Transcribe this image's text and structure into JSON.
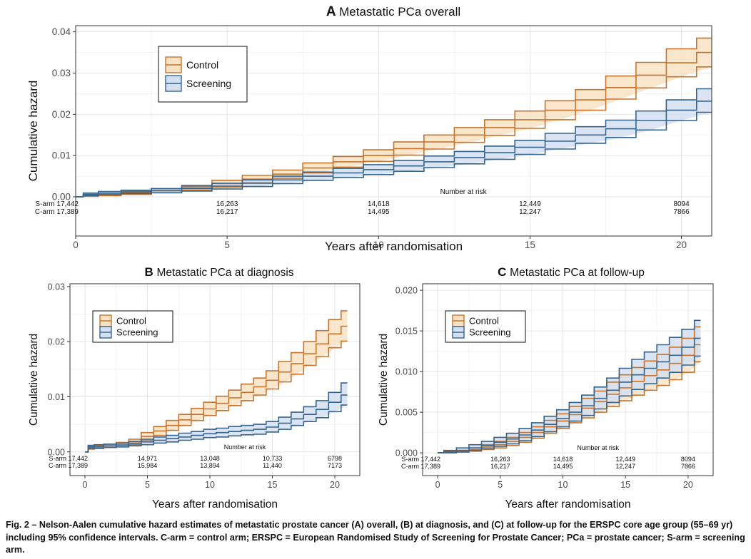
{
  "colors": {
    "control": "#c8742f",
    "control_fill": "#f7e2c4",
    "screening": "#35648c",
    "screening_fill": "#d4dff1",
    "grid": "#e6e6e6",
    "panel_border": "#333333"
  },
  "caption": {
    "prefix": "Fig. 2 – ",
    "text": "Nelson-Aalen cumulative hazard estimates of metastatic prostate cancer (A) overall, (B) at diagnosis, and (C) at follow-up for the ERSPC core age group (55–69 yr) including 95% confidence intervals. C-arm = control arm; ERSPC = European Randomised Study of Screening for Prostate Cancer; PCa = prostate cancer; S-arm = screening arm."
  },
  "chart_data": [
    {
      "id": "A",
      "type": "line",
      "panel_letter": "A",
      "title": "Metastatic PCa overall",
      "xlabel": "Years after randomisation",
      "ylabel": "Cumulative hazard",
      "xlim": [
        0,
        21
      ],
      "ylim": [
        -0.0095,
        0.0415
      ],
      "xticks": [
        0,
        5,
        10,
        15,
        20
      ],
      "xtick_labels": [
        "0",
        "5",
        "10",
        "15",
        "20"
      ],
      "yticks": [
        0,
        0.01,
        0.02,
        0.03,
        0.04
      ],
      "ytick_labels": [
        "0.00",
        "0.01",
        "0.02",
        "0.03",
        "0.04"
      ],
      "grid": true,
      "legend": {
        "position": "top-left",
        "entries": [
          "Control",
          "Screening"
        ]
      },
      "risk_table": {
        "title": "Number at risk",
        "rows": [
          {
            "label": "S-arm",
            "values": [
              "17,442",
              "16,263",
              "14,618",
              "12,449",
              "8094"
            ]
          },
          {
            "label": "C-arm",
            "values": [
              "17,389",
              "16,217",
              "14,495",
              "12,247",
              "7866"
            ]
          }
        ],
        "times": [
          0,
          5,
          10,
          15,
          20
        ]
      },
      "series": [
        {
          "name": "Control",
          "x": [
            0,
            0.5,
            1,
            2,
            3,
            4,
            5,
            6,
            7,
            8,
            9,
            10,
            11,
            12,
            13,
            14,
            15,
            16,
            17,
            18,
            19,
            20,
            21
          ],
          "y": [
            0,
            0.0003,
            0.0006,
            0.001,
            0.0015,
            0.0022,
            0.0032,
            0.0043,
            0.0055,
            0.007,
            0.0085,
            0.01,
            0.0117,
            0.0133,
            0.015,
            0.0168,
            0.0187,
            0.021,
            0.0235,
            0.0265,
            0.0295,
            0.0325,
            0.035
          ],
          "lower": [
            0,
            0.0001,
            0.0003,
            0.0006,
            0.001,
            0.0016,
            0.0024,
            0.0034,
            0.0045,
            0.0058,
            0.0072,
            0.0086,
            0.0101,
            0.0116,
            0.0132,
            0.0149,
            0.0166,
            0.0187,
            0.021,
            0.0237,
            0.0264,
            0.0291,
            0.0315
          ],
          "upper": [
            0,
            0.0005,
            0.0009,
            0.0014,
            0.002,
            0.0028,
            0.004,
            0.0052,
            0.0065,
            0.0082,
            0.0098,
            0.0114,
            0.0133,
            0.015,
            0.0168,
            0.0187,
            0.0208,
            0.0233,
            0.026,
            0.0293,
            0.0326,
            0.0359,
            0.0385
          ]
        },
        {
          "name": "Screening",
          "x": [
            0,
            0.5,
            1,
            2,
            3,
            4,
            5,
            6,
            7,
            8,
            9,
            10,
            11,
            12,
            13,
            14,
            15,
            16,
            17,
            18,
            19,
            20,
            21
          ],
          "y": [
            0,
            0.0006,
            0.0009,
            0.0012,
            0.0015,
            0.002,
            0.0026,
            0.0033,
            0.0041,
            0.005,
            0.0058,
            0.0066,
            0.0075,
            0.0085,
            0.0095,
            0.0107,
            0.012,
            0.0135,
            0.015,
            0.0165,
            0.0185,
            0.021,
            0.0232
          ],
          "lower": [
            0,
            0.0003,
            0.0005,
            0.0008,
            0.001,
            0.0014,
            0.0019,
            0.0025,
            0.0032,
            0.004,
            0.0047,
            0.0054,
            0.0062,
            0.0071,
            0.008,
            0.0091,
            0.0103,
            0.0116,
            0.013,
            0.0144,
            0.0162,
            0.0185,
            0.0205
          ],
          "upper": [
            0,
            0.0009,
            0.0013,
            0.0016,
            0.002,
            0.0026,
            0.0033,
            0.0041,
            0.005,
            0.006,
            0.0069,
            0.0078,
            0.0088,
            0.0099,
            0.011,
            0.0123,
            0.0137,
            0.0154,
            0.017,
            0.0186,
            0.0208,
            0.0235,
            0.0262
          ]
        }
      ]
    },
    {
      "id": "B",
      "type": "line",
      "panel_letter": "B",
      "title": "Metastatic PCa at diagnosis",
      "xlabel": "Years after randomisation",
      "ylabel": "Cumulative hazard",
      "xlim": [
        -1.2,
        22
      ],
      "ylim": [
        -0.0043,
        0.0305
      ],
      "xticks": [
        0,
        5,
        10,
        15,
        20
      ],
      "xtick_labels": [
        "0",
        "5",
        "10",
        "15",
        "20"
      ],
      "yticks": [
        0,
        0.01,
        0.02,
        0.03
      ],
      "ytick_labels": [
        "0.00",
        "0.01",
        "0.02",
        "0.03"
      ],
      "grid": true,
      "legend": {
        "position": "top-left",
        "entries": [
          "Control",
          "Screening"
        ]
      },
      "risk_table": {
        "title": "Number at risk",
        "rows": [
          {
            "label": "S-arm",
            "values": [
              "17,442",
              "14,971",
              "13,048",
              "10,733",
              "6798"
            ]
          },
          {
            "label": "C-arm",
            "values": [
              "17,389",
              "15,984",
              "13,894",
              "11,440",
              "7173"
            ]
          }
        ],
        "times": [
          0,
          5,
          10,
          15,
          20
        ]
      },
      "series": [
        {
          "name": "Control",
          "x": [
            0,
            0.5,
            1,
            2,
            3,
            4,
            5,
            6,
            7,
            8,
            9,
            10,
            11,
            12,
            13,
            14,
            15,
            16,
            17,
            18,
            19,
            20,
            21
          ],
          "y": [
            0,
            0.0008,
            0.0009,
            0.0011,
            0.0013,
            0.0018,
            0.0028,
            0.0038,
            0.0048,
            0.0058,
            0.0068,
            0.0078,
            0.0088,
            0.0098,
            0.0108,
            0.0118,
            0.013,
            0.0145,
            0.016,
            0.0178,
            0.0196,
            0.0214,
            0.0228
          ],
          "lower": [
            0,
            0.0005,
            0.0006,
            0.0008,
            0.0009,
            0.0013,
            0.0021,
            0.003,
            0.0039,
            0.0048,
            0.0057,
            0.0066,
            0.0075,
            0.0084,
            0.0093,
            0.0103,
            0.0114,
            0.0127,
            0.0141,
            0.0157,
            0.0173,
            0.0189,
            0.0201
          ],
          "upper": [
            0,
            0.0011,
            0.0012,
            0.0014,
            0.0017,
            0.0023,
            0.0035,
            0.0046,
            0.0057,
            0.0068,
            0.0079,
            0.009,
            0.0101,
            0.0112,
            0.0123,
            0.0134,
            0.0147,
            0.0164,
            0.018,
            0.02,
            0.022,
            0.024,
            0.0256
          ]
        },
        {
          "name": "Screening",
          "x": [
            0,
            0.5,
            1,
            2,
            3,
            4,
            5,
            6,
            7,
            8,
            9,
            10,
            11,
            12,
            13,
            14,
            15,
            16,
            17,
            18,
            19,
            20,
            21
          ],
          "y": [
            0,
            0.0009,
            0.001,
            0.0011,
            0.0012,
            0.0015,
            0.0018,
            0.0021,
            0.0024,
            0.0027,
            0.003,
            0.0033,
            0.0035,
            0.0037,
            0.0039,
            0.0041,
            0.0045,
            0.0052,
            0.006,
            0.0068,
            0.0077,
            0.009,
            0.0103
          ],
          "lower": [
            0,
            0.0006,
            0.0007,
            0.0008,
            0.0009,
            0.0011,
            0.0013,
            0.0016,
            0.0018,
            0.0021,
            0.0023,
            0.0026,
            0.0027,
            0.0029,
            0.0031,
            0.0032,
            0.0036,
            0.0041,
            0.0048,
            0.0055,
            0.0062,
            0.0073,
            0.0085
          ],
          "upper": [
            0,
            0.0012,
            0.0013,
            0.0014,
            0.0016,
            0.0019,
            0.0023,
            0.0027,
            0.003,
            0.0034,
            0.0037,
            0.0041,
            0.0043,
            0.0046,
            0.0048,
            0.005,
            0.0055,
            0.0063,
            0.0072,
            0.0082,
            0.0093,
            0.0108,
            0.0125
          ]
        }
      ]
    },
    {
      "id": "C",
      "type": "line",
      "panel_letter": "C",
      "title": "Metastatic PCa at follow-up",
      "xlabel": "Years after randomisation",
      "ylabel": "Cumulative hazard",
      "xlim": [
        -1.2,
        22
      ],
      "ylim": [
        -0.0028,
        0.0208
      ],
      "xticks": [
        0,
        5,
        10,
        15,
        20
      ],
      "xtick_labels": [
        "0",
        "5",
        "10",
        "15",
        "20"
      ],
      "yticks": [
        0,
        0.005,
        0.01,
        0.015,
        0.02
      ],
      "ytick_labels": [
        "0.000",
        "0.005",
        "0.010",
        "0.015",
        "0.020"
      ],
      "grid": true,
      "legend": {
        "position": "top-left",
        "entries": [
          "Control",
          "Screening"
        ]
      },
      "risk_table": {
        "title": "Number at risk",
        "rows": [
          {
            "label": "S-arm",
            "values": [
              "17,442",
              "16,263",
              "14,618",
              "12,449",
              "8094"
            ]
          },
          {
            "label": "C-arm",
            "values": [
              "17,389",
              "16,217",
              "14,495",
              "12,247",
              "7866"
            ]
          }
        ],
        "times": [
          0,
          5,
          10,
          15,
          20
        ]
      },
      "series": [
        {
          "name": "Control",
          "x": [
            0,
            1,
            2,
            3,
            4,
            5,
            6,
            7,
            8,
            9,
            10,
            11,
            12,
            13,
            14,
            15,
            16,
            17,
            18,
            19,
            20,
            21
          ],
          "y": [
            0,
            0.0001,
            0.0002,
            0.0004,
            0.0007,
            0.001,
            0.0014,
            0.0019,
            0.0025,
            0.0032,
            0.0039,
            0.0047,
            0.0055,
            0.0063,
            0.0072,
            0.008,
            0.0088,
            0.0095,
            0.0102,
            0.011,
            0.012,
            0.0133
          ],
          "lower": [
            0,
            0.0,
            0.0001,
            0.0002,
            0.0004,
            0.0006,
            0.0009,
            0.0013,
            0.0018,
            0.0024,
            0.003,
            0.0037,
            0.0043,
            0.005,
            0.0057,
            0.0064,
            0.0071,
            0.0077,
            0.0083,
            0.009,
            0.0099,
            0.0112
          ],
          "upper": [
            0,
            0.0002,
            0.0003,
            0.0006,
            0.001,
            0.0014,
            0.0019,
            0.0025,
            0.0032,
            0.004,
            0.0048,
            0.0057,
            0.0067,
            0.0076,
            0.0087,
            0.0096,
            0.0105,
            0.0113,
            0.0121,
            0.013,
            0.0141,
            0.0155
          ]
        },
        {
          "name": "Screening",
          "x": [
            0,
            1,
            2,
            3,
            4,
            5,
            6,
            7,
            8,
            9,
            10,
            11,
            12,
            13,
            14,
            15,
            16,
            17,
            18,
            19,
            20,
            21
          ],
          "y": [
            0,
            0.0001,
            0.0003,
            0.0006,
            0.0009,
            0.0013,
            0.0017,
            0.0022,
            0.0028,
            0.0035,
            0.0042,
            0.005,
            0.0058,
            0.0067,
            0.0077,
            0.0087,
            0.0096,
            0.0104,
            0.0112,
            0.012,
            0.013,
            0.0141
          ],
          "lower": [
            0,
            0.0,
            0.0001,
            0.0003,
            0.0005,
            0.0008,
            0.0011,
            0.0015,
            0.002,
            0.0026,
            0.0032,
            0.0039,
            0.0046,
            0.0054,
            0.0062,
            0.007,
            0.0078,
            0.0085,
            0.0092,
            0.0099,
            0.0108,
            0.0119
          ],
          "upper": [
            0,
            0.0003,
            0.0006,
            0.001,
            0.0014,
            0.0019,
            0.0024,
            0.003,
            0.0037,
            0.0045,
            0.0053,
            0.0062,
            0.0071,
            0.0081,
            0.0092,
            0.0104,
            0.0115,
            0.0124,
            0.0133,
            0.0142,
            0.0152,
            0.0163
          ]
        }
      ]
    }
  ]
}
